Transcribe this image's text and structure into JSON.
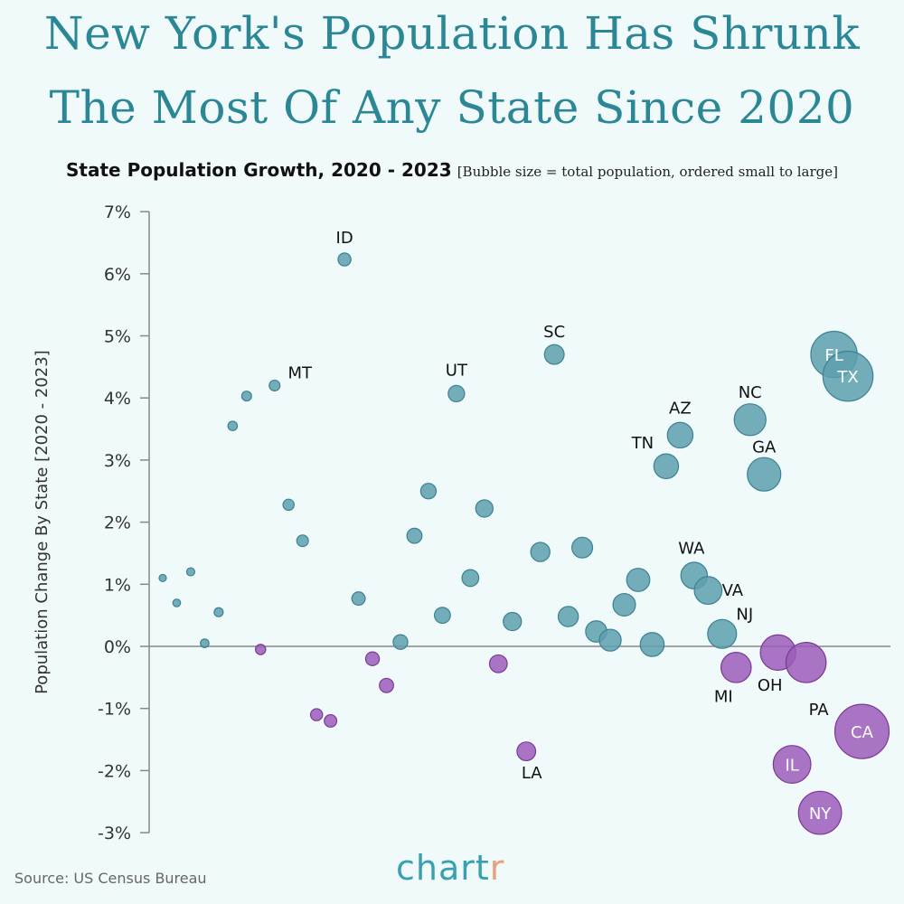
{
  "title_lines": [
    "New York's Population Has Shrunk",
    "The Most Of Any State Since 2020"
  ],
  "subtitle": "State Population Growth, 2020 - 2023",
  "subtitle_note": "[Bubble size = total population, ordered small to large]",
  "source": "Source: US Census Bureau",
  "logo": {
    "main": "chart",
    "accent": "r"
  },
  "colors": {
    "growth": "#5e9fae",
    "growth_stroke": "#3b8192",
    "decline": "#9b5cb8",
    "decline_stroke": "#7a3a98",
    "title": "#2b8796",
    "background": "#f1fafa"
  },
  "chart_data": {
    "type": "scatter",
    "title": "State Population Growth, 2020 - 2023",
    "xlabel": "",
    "ylabel": "Population Change By State [2020 - 2023]",
    "ylim": [
      -3,
      7
    ],
    "yticks": [
      "7%",
      "6%",
      "5%",
      "4%",
      "3%",
      "2%",
      "1%",
      "0%",
      "-1%",
      "-2%",
      "-3%"
    ],
    "ytick_values": [
      7,
      6,
      5,
      4,
      3,
      2,
      1,
      0,
      -1,
      -2,
      -3
    ],
    "x_order": "population rank, small to large",
    "bubble_size": "total population",
    "grid": false,
    "points": [
      {
        "label": "",
        "value": 1.1
      },
      {
        "label": "",
        "value": 0.7
      },
      {
        "label": "",
        "value": 1.2
      },
      {
        "label": "",
        "value": 0.05
      },
      {
        "label": "",
        "value": 0.55
      },
      {
        "label": "",
        "value": 3.55
      },
      {
        "label": "",
        "value": 4.03
      },
      {
        "label": "",
        "value": -0.05
      },
      {
        "label": "MT",
        "value": 4.2
      },
      {
        "label": "",
        "value": 2.28
      },
      {
        "label": "",
        "value": 1.7
      },
      {
        "label": "",
        "value": -1.1
      },
      {
        "label": "",
        "value": -1.2
      },
      {
        "label": "ID",
        "value": 6.23
      },
      {
        "label": "",
        "value": 0.77
      },
      {
        "label": "",
        "value": -0.2
      },
      {
        "label": "",
        "value": -0.63
      },
      {
        "label": "",
        "value": 0.07
      },
      {
        "label": "",
        "value": 1.78
      },
      {
        "label": "",
        "value": 2.5
      },
      {
        "label": "",
        "value": 0.5
      },
      {
        "label": "UT",
        "value": 4.07
      },
      {
        "label": "",
        "value": 1.1
      },
      {
        "label": "",
        "value": 2.22
      },
      {
        "label": "",
        "value": -0.28
      },
      {
        "label": "",
        "value": 0.4
      },
      {
        "label": "LA",
        "value": -1.69
      },
      {
        "label": "",
        "value": 1.52
      },
      {
        "label": "SC",
        "value": 4.7
      },
      {
        "label": "",
        "value": 0.48
      },
      {
        "label": "",
        "value": 1.59
      },
      {
        "label": "",
        "value": 0.24
      },
      {
        "label": "",
        "value": 0.1
      },
      {
        "label": "",
        "value": 0.67
      },
      {
        "label": "",
        "value": 1.07
      },
      {
        "label": "",
        "value": 0.03
      },
      {
        "label": "TN",
        "value": 2.9
      },
      {
        "label": "AZ",
        "value": 3.4
      },
      {
        "label": "WA",
        "value": 1.14
      },
      {
        "label": "VA",
        "value": 0.9
      },
      {
        "label": "NJ",
        "value": 0.2
      },
      {
        "label": "MI",
        "value": -0.34
      },
      {
        "label": "NC",
        "value": 3.65
      },
      {
        "label": "GA",
        "value": 2.77
      },
      {
        "label": "OH",
        "value": -0.1
      },
      {
        "label": "IL",
        "value": -1.9
      },
      {
        "label": "PA",
        "value": -0.26
      },
      {
        "label": "NY",
        "value": -2.68
      },
      {
        "label": "FL",
        "value": 4.7
      },
      {
        "label": "TX",
        "value": 4.35
      },
      {
        "label": "CA",
        "value": -1.37
      }
    ]
  }
}
